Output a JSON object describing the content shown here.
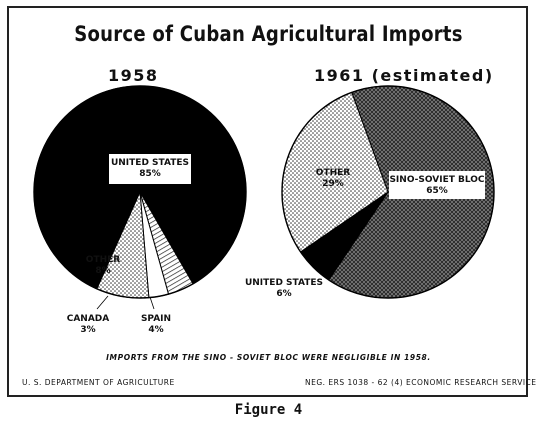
{
  "title": "Source of Cuban Agricultural Imports",
  "footnote": "IMPORTS FROM THE SINO - SOVIET BLOC WERE NEGLIGIBLE IN 1958.",
  "footer_left": "U. S. DEPARTMENT OF AGRICULTURE",
  "footer_right": "NEG. ERS 1038 - 62 (4)    ECONOMIC RESEARCH SERVICE",
  "caption": "Figure 4",
  "chart_data": [
    {
      "type": "pie",
      "title": "1958",
      "slices": [
        {
          "label": "UNITED STATES",
          "value_label": "85%",
          "value": 85,
          "fill": "black"
        },
        {
          "label": "SPAIN",
          "value_label": "4%",
          "value": 4,
          "fill": "hatch"
        },
        {
          "label": "CANADA",
          "value_label": "3%",
          "value": 3,
          "fill": "white"
        },
        {
          "label": "OTHER",
          "value_label": "8%",
          "value": 8,
          "fill": "dots"
        }
      ]
    },
    {
      "type": "pie",
      "title": "1961 (estimated)",
      "slices": [
        {
          "label": "SINO-SOVIET BLOC",
          "value_label": "65%",
          "value": 65,
          "fill": "crosshatch"
        },
        {
          "label": "UNITED STATES",
          "value_label": "6%",
          "value": 6,
          "fill": "black"
        },
        {
          "label": "OTHER",
          "value_label": "29%",
          "value": 29,
          "fill": "dots"
        }
      ]
    }
  ]
}
